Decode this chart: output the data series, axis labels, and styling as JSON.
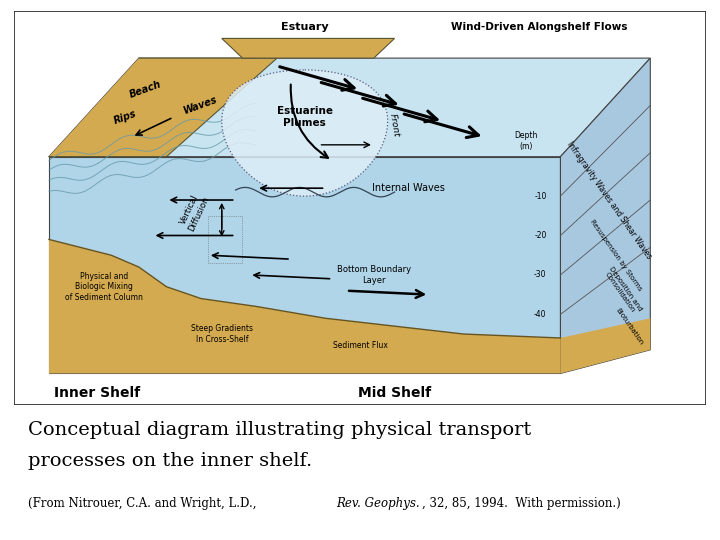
{
  "bg_color": "#ffffff",
  "title": "Conceptual diagram illustrating physical transport\nprocesses on the inner shelf.",
  "caption_pre": "(From Nitrouer, C.A. and Wright, L.D., ",
  "caption_italic": "Rev. Geophys.",
  "caption_post": ", 32, 85, 1994.  With permission.)",
  "title_fontsize": 16,
  "caption_fontsize": 9,
  "water_top": "#c8e4f0",
  "water_mid": "#b0d4e8",
  "water_deep": "#98c4dc",
  "sand_color": "#d4aa50",
  "sand_dark": "#c09030",
  "plume_color": "#dce8f0",
  "border_color": "#333333",
  "text_color": "#000000"
}
